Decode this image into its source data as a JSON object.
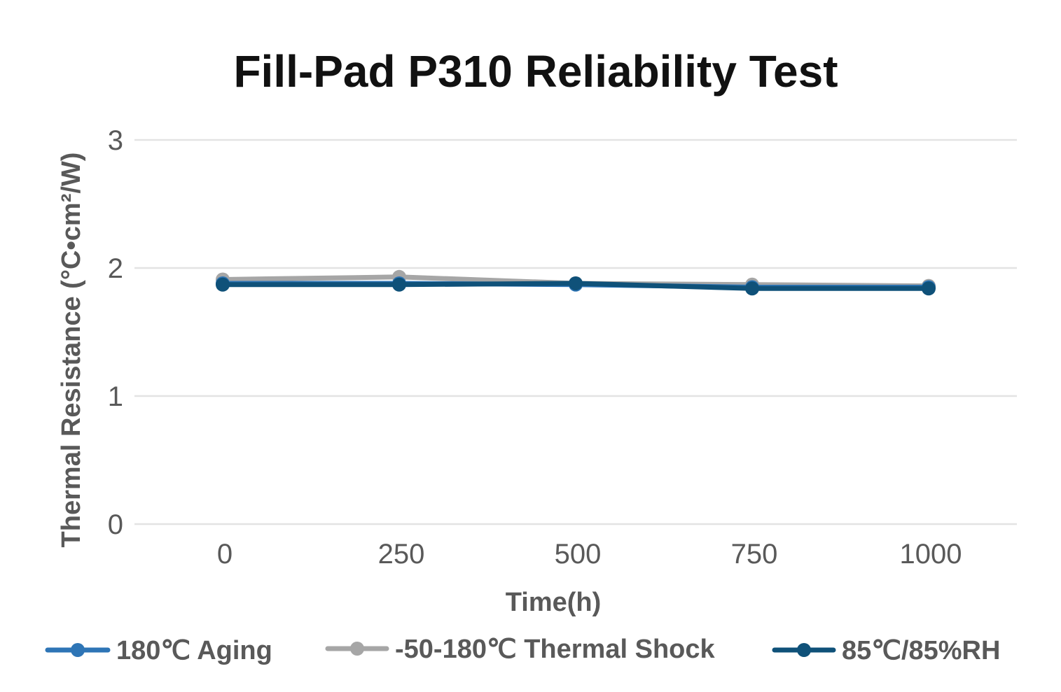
{
  "chart_data": {
    "type": "line",
    "title": "Fill-Pad P310 Reliability Test",
    "xlabel": "Time(h)",
    "ylabel": "Thermal Resistance (°C•cm²/W)",
    "categories": [
      "0",
      "250",
      "500",
      "750",
      "1000"
    ],
    "yticks": [
      "0",
      "1",
      "2",
      "3"
    ],
    "ylim": [
      0,
      3
    ],
    "grid": true,
    "legend_position": "bottom",
    "series": [
      {
        "name": "180℃ Aging",
        "color": "#2e75b6",
        "values": [
          1.88,
          1.88,
          1.87,
          1.85,
          1.85
        ]
      },
      {
        "name": "-50-180℃ Thermal Shock",
        "color": "#a6a6a6",
        "values": [
          1.91,
          1.93,
          1.88,
          1.87,
          1.86
        ]
      },
      {
        "name": "85℃/85%RH",
        "color": "#0f5179",
        "values": [
          1.87,
          1.87,
          1.88,
          1.84,
          1.84
        ]
      }
    ]
  }
}
